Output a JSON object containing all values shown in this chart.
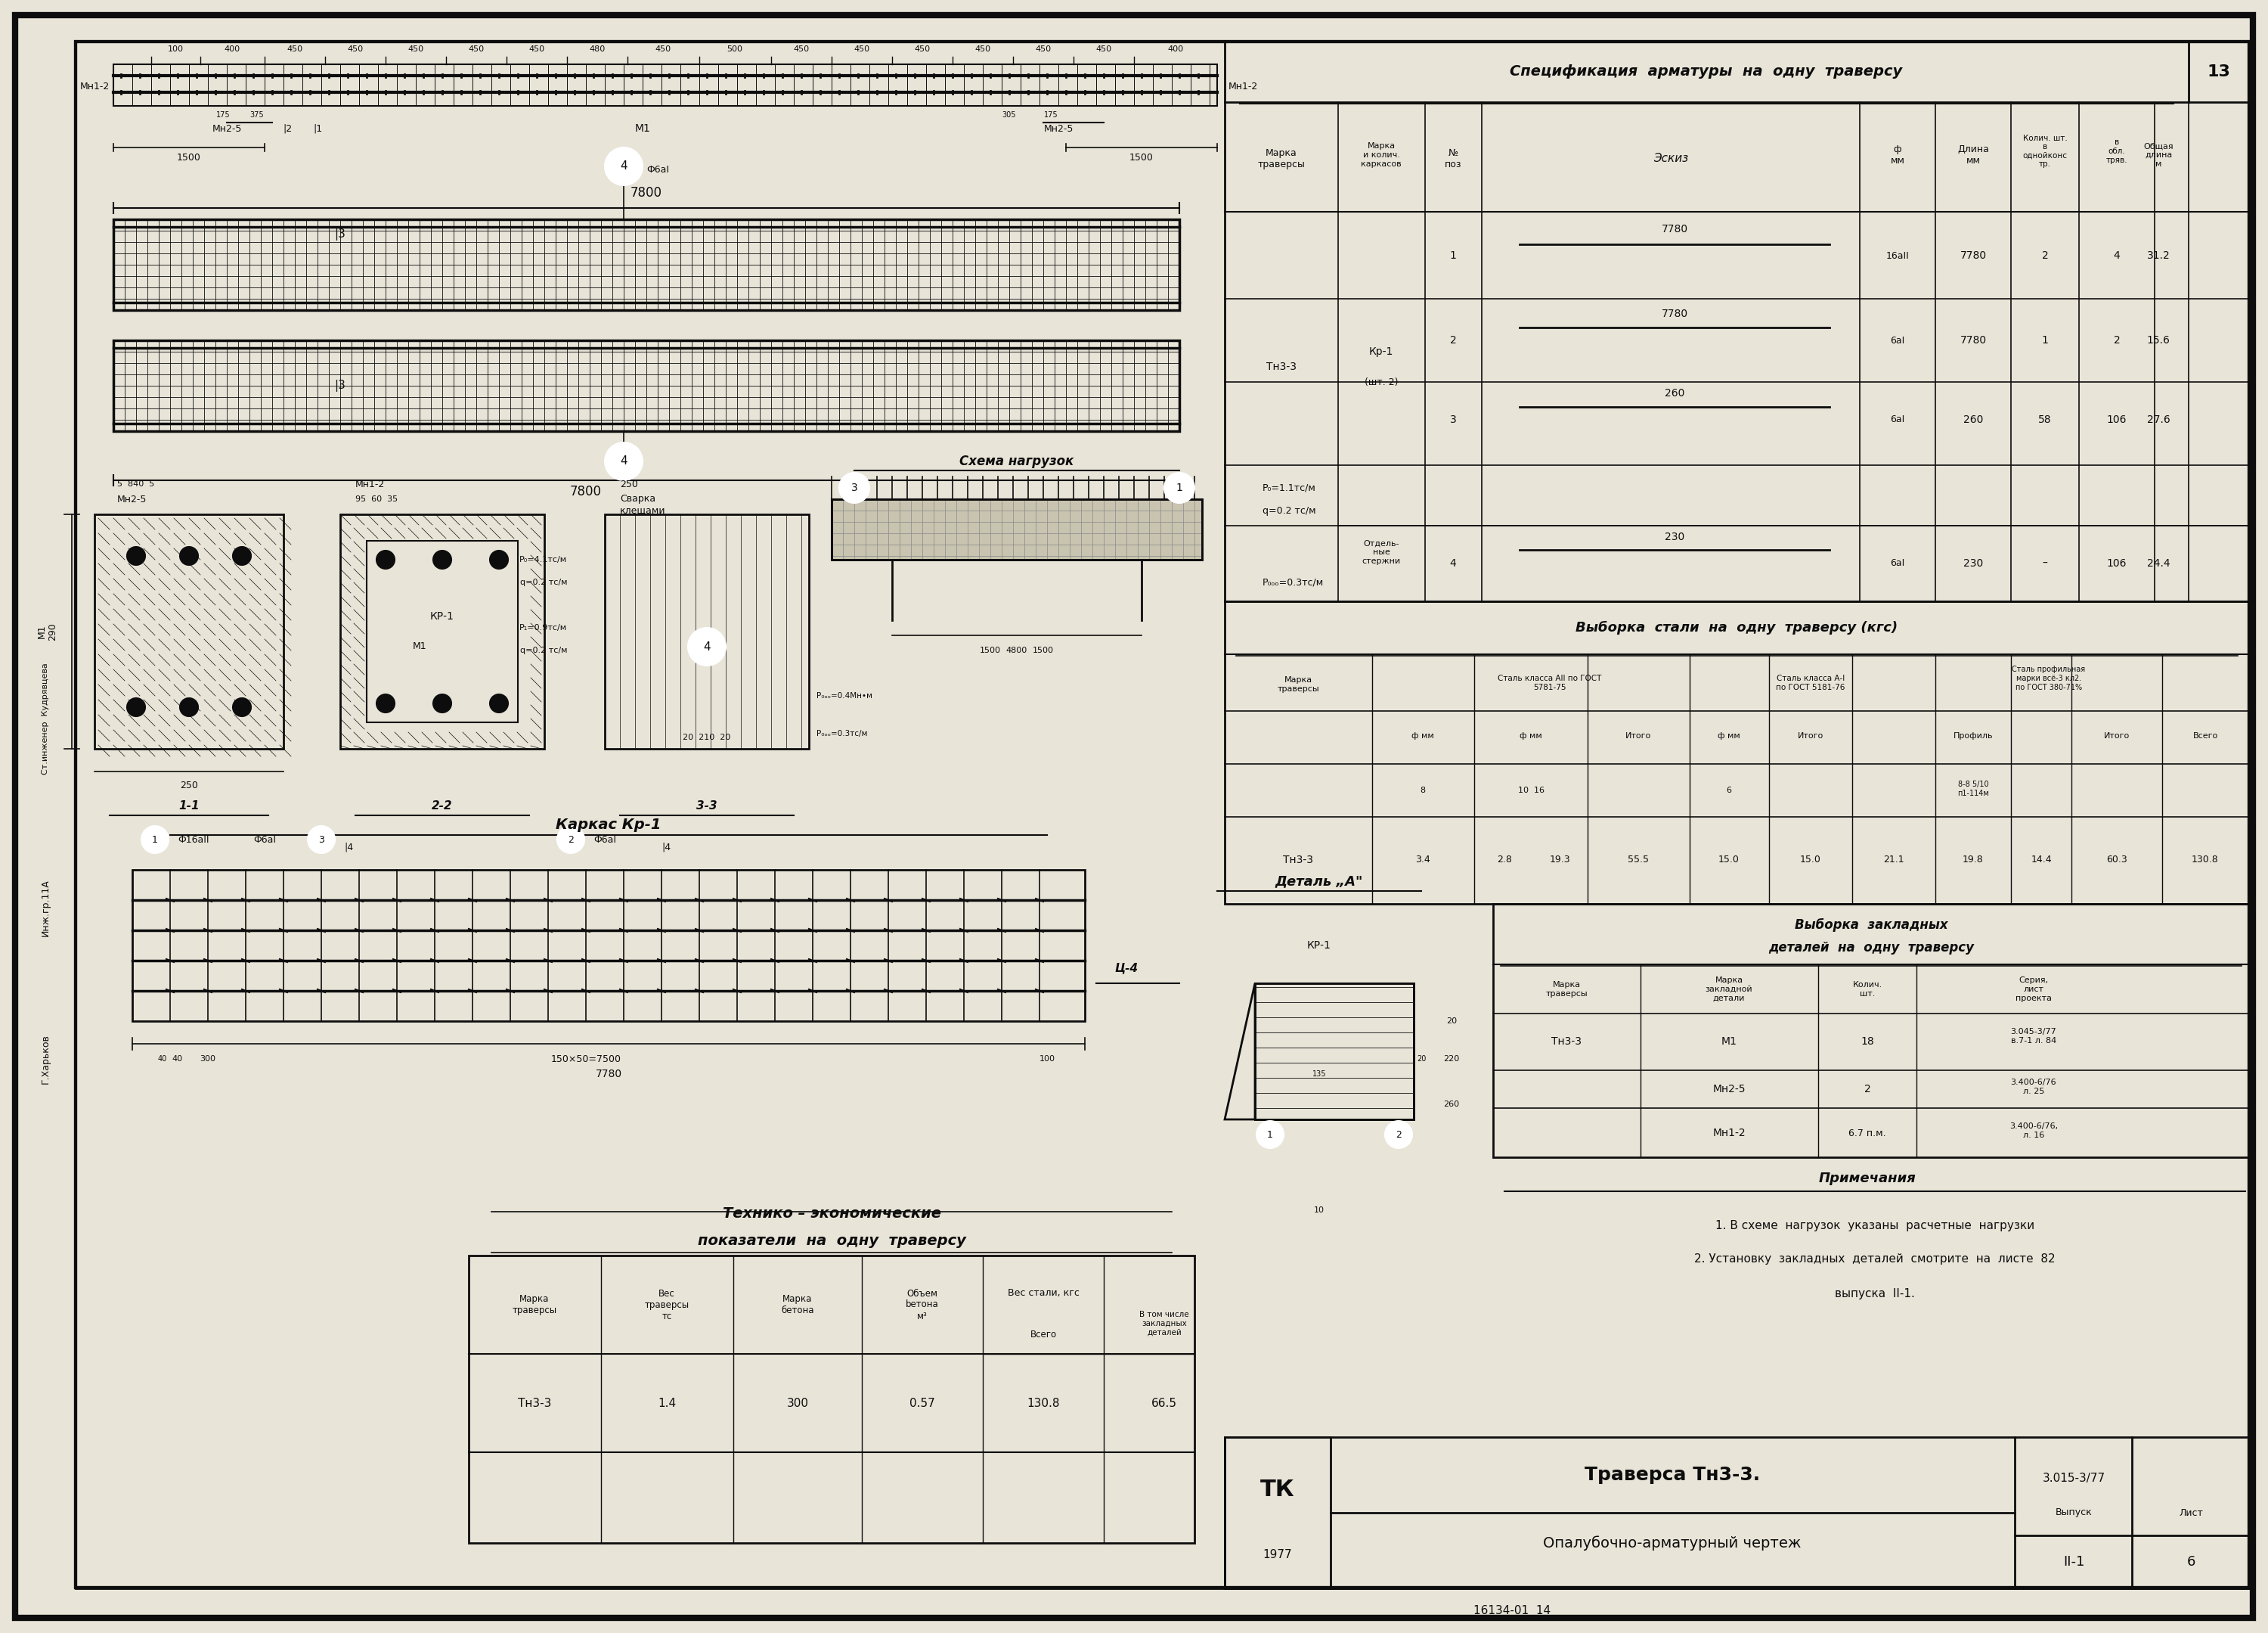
{
  "title": "Траверса Тн3-3.",
  "subtitle": "Опалубочно-арматурный чертеж",
  "doc_number": "3.015-3/77",
  "vypusk": "II-1",
  "list_num": "6",
  "year": "1977",
  "stamp_number": "16134-01  14",
  "sheet_num": "13",
  "bg_color": "#e8e4d8",
  "line_color": "#0d0d0d",
  "spec_title": "Спецификация  арматуры  на  одну  траверсу",
  "vybor_title": "Выборка  стали  на  одну  траверсу (кгс)",
  "zakl_title1": "Выборка  закладных",
  "zakl_title2": "деталей  на  одну  траверсу",
  "prim_title": "Примечания",
  "teh_title1": "Технико – экономические",
  "teh_title2": "показатели  на  одну  траверсу",
  "karkas_title": "Каркас Кр-1",
  "detal_title": "Деталь „А\"",
  "schema_title": "Схема нагрузок",
  "prim1": "1. В схеме  нагрузок  указаны  расчетные  нагрузки",
  "prim2": "2. Установку  закладных  деталей  смотрите  на  листе  82",
  "prim3": "выпуска  II-1."
}
